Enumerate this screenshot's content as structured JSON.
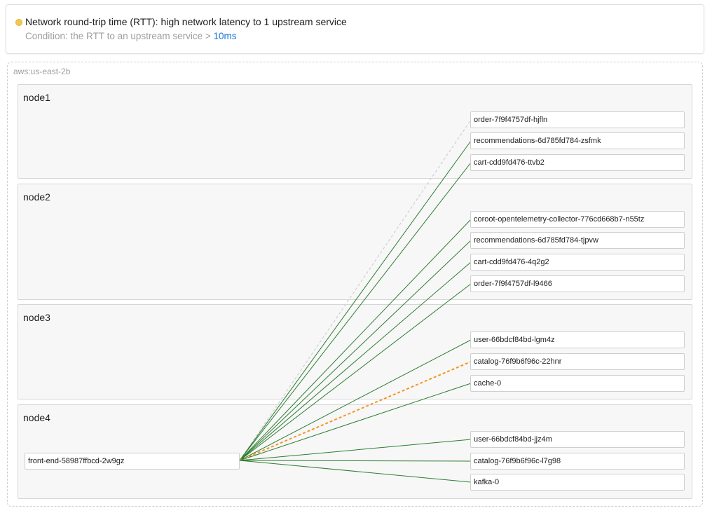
{
  "alert": {
    "title": "Network round-trip time (RTT): high network latency to 1 upstream service",
    "condition_prefix": "Condition: the RTT to an upstream service > ",
    "condition_threshold": "10ms",
    "status_color": "#f2c94c"
  },
  "zone": {
    "label": "aws:us-east-2b"
  },
  "nodes": [
    {
      "label": "node1",
      "pods": [
        "order-7f9f4757df-hjfln",
        "recommendations-6d785fd784-zsfmk",
        "cart-cdd9fd476-ttvb2"
      ]
    },
    {
      "label": "node2",
      "pods": [
        "coroot-opentelemetry-collector-776cd668b7-n55tz",
        "recommendations-6d785fd784-tjpvw",
        "cart-cdd9fd476-4q2g2",
        "order-7f9f4757df-l9466"
      ]
    },
    {
      "label": "node3",
      "pods": [
        "user-66bdcf84bd-lgm4z",
        "catalog-76f9b6f96c-22hnr",
        "cache-0"
      ]
    },
    {
      "label": "node4",
      "pods": [
        "user-66bdcf84bd-jjz4m",
        "catalog-76f9b6f96c-l7g98",
        "kafka-0"
      ],
      "source": "front-end-58987ffbcd-2w9gz"
    }
  ],
  "links": [
    {
      "to": "order-7f9f4757df-hjfln",
      "status": "unknown"
    },
    {
      "to": "recommendations-6d785fd784-zsfmk",
      "status": "ok"
    },
    {
      "to": "cart-cdd9fd476-ttvb2",
      "status": "ok"
    },
    {
      "to": "coroot-opentelemetry-collector-776cd668b7-n55tz",
      "status": "ok"
    },
    {
      "to": "recommendations-6d785fd784-tjpvw",
      "status": "ok"
    },
    {
      "to": "cart-cdd9fd476-4q2g2",
      "status": "ok"
    },
    {
      "to": "order-7f9f4757df-l9466",
      "status": "ok"
    },
    {
      "to": "user-66bdcf84bd-lgm4z",
      "status": "ok"
    },
    {
      "to": "catalog-76f9b6f96c-22hnr",
      "status": "warning"
    },
    {
      "to": "cache-0",
      "status": "ok"
    },
    {
      "to": "user-66bdcf84bd-jjz4m",
      "status": "ok"
    },
    {
      "to": "catalog-76f9b6f96c-l7g98",
      "status": "ok"
    },
    {
      "to": "kafka-0",
      "status": "ok"
    }
  ],
  "colors": {
    "ok": "#2e7d32",
    "warning": "#f5951f",
    "unknown": "#d0d0d0"
  }
}
